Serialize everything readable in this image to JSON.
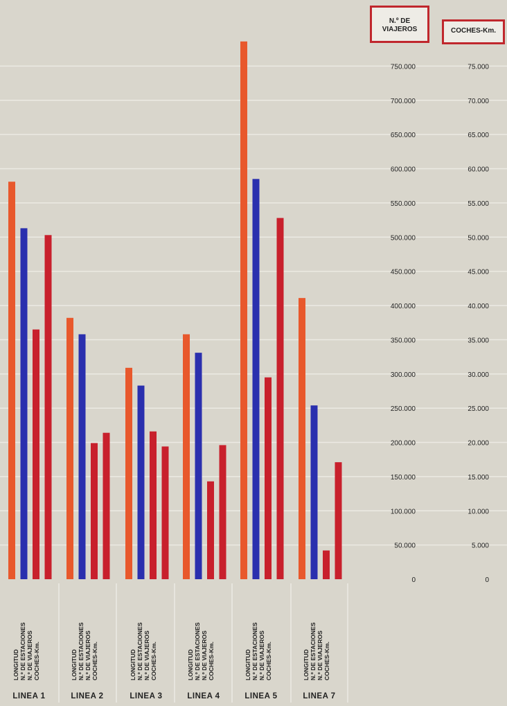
{
  "chart_data": {
    "type": "bar",
    "categories": [
      "LINEA 1",
      "LINEA 2",
      "LINEA 3",
      "LINEA 4",
      "LINEA 5",
      "LINEA 7"
    ],
    "bar_labels": [
      "LONGITUD",
      "N.º DE ESTACIONES",
      "N.º DE VIAJEROS",
      "COCHES-Km."
    ],
    "series": [
      {
        "values": [
          581000,
          382000,
          309000,
          358000,
          786000,
          411000
        ],
        "color": "#e8582c"
      },
      {
        "values": [
          513000,
          358000,
          283000,
          331000,
          585000,
          254000
        ],
        "color": "#2a2fae"
      },
      {
        "values": [
          365000,
          199000,
          216000,
          143000,
          295000,
          42000
        ],
        "color": "#c8202c"
      },
      {
        "values": [
          50300,
          21400,
          19400,
          19600,
          52800,
          17100
        ],
        "color": "#c8202c"
      }
    ],
    "left_axis": {
      "title_lines": [
        "N.º DE",
        "VIAJEROS"
      ],
      "range": [
        0,
        800000
      ],
      "tick_labels": [
        "0",
        "50.000",
        "100.000",
        "150.000",
        "200.000",
        "250.000",
        "300.000",
        "350.000",
        "400.000",
        "450.000",
        "500.000",
        "550.000",
        "600.000",
        "650.000",
        "700.000",
        "750.000"
      ]
    },
    "right_axis": {
      "title": "COCHES-Km.",
      "range": [
        0,
        80000
      ],
      "tick_labels": [
        "0",
        "5.000",
        "10.000",
        "15.000",
        "20.000",
        "25.000",
        "30.000",
        "35.000",
        "40.000",
        "45.000",
        "50.000",
        "55.000",
        "60.000",
        "65.000",
        "70.000",
        "75.000"
      ]
    },
    "grid": true,
    "colors": {
      "background": "#d9d6cc",
      "grid": "#eceae3",
      "header_border": "#c0272d"
    }
  }
}
